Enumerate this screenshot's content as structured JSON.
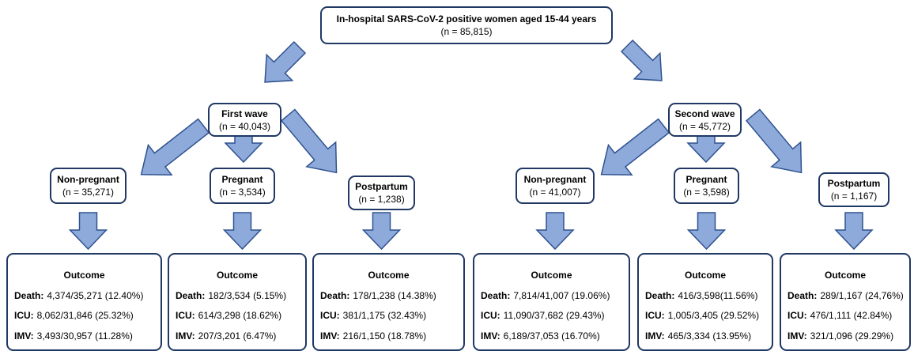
{
  "root": {
    "title": "In-hospital SARS-CoV-2 positive women aged 15-44 years",
    "n": "(n = 85,815)"
  },
  "waves": [
    {
      "label": "First wave",
      "n": "(n = 40,043)",
      "groups": [
        {
          "label": "Non-pregnant",
          "n": "(n = 35,271)",
          "outcome": {
            "title": "Outcome",
            "rows": [
              {
                "label": "Death:",
                "value": "4,374/35,271 (12.40%)"
              },
              {
                "label": "ICU:",
                "value": "8,062/31,846 (25.32%)"
              },
              {
                "label": "IMV:",
                "value": "3,493/30,957 (11.28%)"
              }
            ]
          }
        },
        {
          "label": "Pregnant",
          "n": "(n = 3,534)",
          "outcome": {
            "title": "Outcome",
            "rows": [
              {
                "label": "Death:",
                "value": "182/3,534 (5.15%)"
              },
              {
                "label": "ICU:",
                "value": "614/3,298 (18.62%)"
              },
              {
                "label": "IMV:",
                "value": "207/3,201 (6.47%)"
              }
            ]
          }
        },
        {
          "label": "Postpartum",
          "n": "(n = 1,238)",
          "outcome": {
            "title": "Outcome",
            "rows": [
              {
                "label": "Death:",
                "value": "178/1,238 (14.38%)"
              },
              {
                "label": "ICU:",
                "value": "381/1,175 (32.43%)"
              },
              {
                "label": "IMV:",
                "value": "216/1,150 (18.78%)"
              }
            ]
          }
        }
      ]
    },
    {
      "label": "Second wave",
      "n": "(n = 45,772)",
      "groups": [
        {
          "label": "Non-pregnant",
          "n": "(n = 41,007)",
          "outcome": {
            "title": "Outcome",
            "rows": [
              {
                "label": "Death:",
                "value": "7,814/41,007 (19.06%)"
              },
              {
                "label": "ICU:",
                "value": "11,090/37,682 (29.43%)"
              },
              {
                "label": "IMV:",
                "value": "6,189/37,053 (16.70%)"
              }
            ]
          }
        },
        {
          "label": "Pregnant",
          "n": "(n = 3,598)",
          "outcome": {
            "title": "Outcome",
            "rows": [
              {
                "label": "Death:",
                "value": "416/3,598(11.56%)"
              },
              {
                "label": "ICU:",
                "value": "1,005/3,405 (29.52%)"
              },
              {
                "label": "IMV:",
                "value": "465/3,334 (13.95%)"
              }
            ]
          }
        },
        {
          "label": "Postpartum",
          "n": "(n = 1,167)",
          "outcome": {
            "title": "Outcome",
            "rows": [
              {
                "label": "Death:",
                "value": "289/1,167 (24,76%)"
              },
              {
                "label": "ICU:",
                "value": "476/1,111 (42.84%)"
              },
              {
                "label": "IMV:",
                "value": "321/1,096 (29.29%)"
              }
            ]
          }
        }
      ]
    }
  ]
}
